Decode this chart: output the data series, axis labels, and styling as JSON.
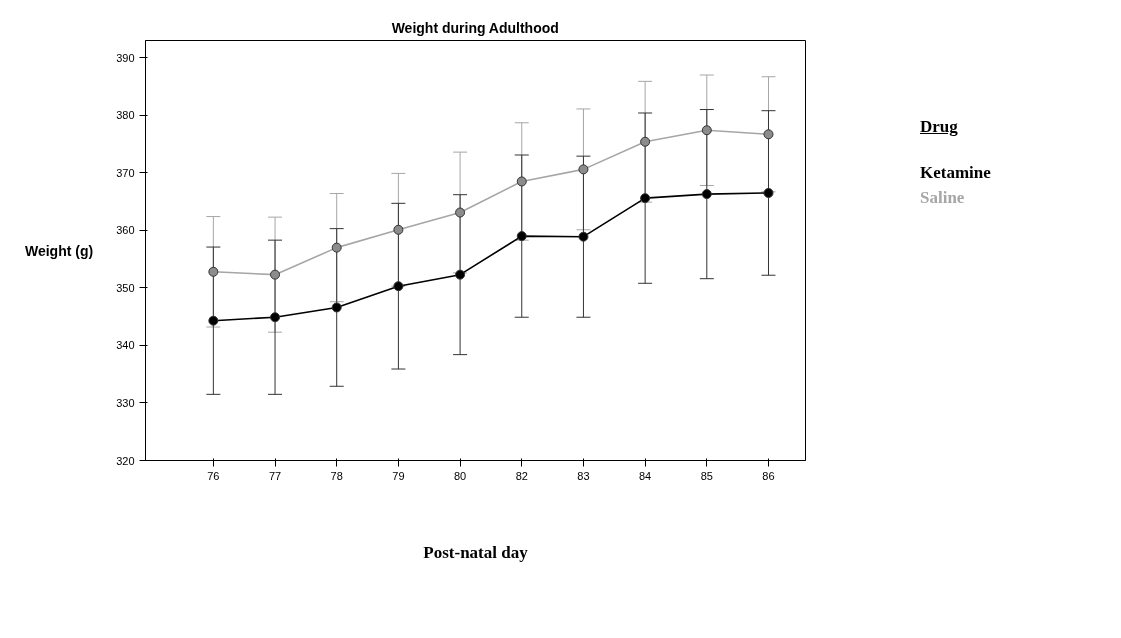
{
  "chart_data": {
    "type": "line",
    "title": "Weight during Adulthood",
    "xlabel": "Post-natal day",
    "ylabel": "Weight (g)",
    "legend_title": "Drug",
    "legend": "right",
    "marker": "circle",
    "line_style": "solid",
    "grid": false,
    "categories": [
      "76",
      "77",
      "78",
      "79",
      "80",
      "82",
      "83",
      "84",
      "85",
      "86"
    ],
    "ylim": [
      320,
      393
    ],
    "yticks": [
      320,
      330,
      340,
      350,
      360,
      370,
      380,
      390
    ],
    "series": [
      {
        "name": "Ketamine",
        "color": "#000000",
        "values": [
          344.3,
          344.9,
          346.6,
          350.3,
          352.3,
          359.0,
          358.9,
          365.6,
          366.3,
          366.5
        ],
        "errors": [
          12.8,
          13.4,
          13.7,
          14.4,
          13.9,
          14.1,
          14.0,
          14.8,
          14.7,
          14.3
        ]
      },
      {
        "name": "Saline",
        "color": "#a6a6a6",
        "values": [
          352.8,
          352.3,
          357.0,
          360.1,
          363.1,
          368.5,
          370.6,
          375.4,
          377.4,
          376.7
        ],
        "errors": [
          9.6,
          10.0,
          9.4,
          9.8,
          10.5,
          10.2,
          10.5,
          10.5,
          9.6,
          10.0
        ]
      }
    ]
  }
}
